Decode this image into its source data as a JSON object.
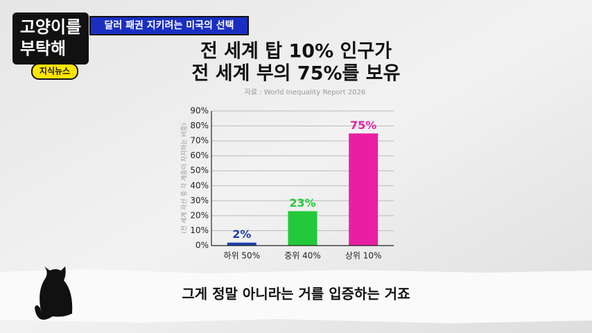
{
  "header": {
    "logo": [
      "고양이를",
      "부탁해"
    ],
    "badge": "지식뉴스",
    "banner": "달러 패권 지키려는 미국의 선택"
  },
  "chart_data": {
    "type": "bar",
    "title_lines": [
      "전 세계 탑 10% 인구가",
      "전 세계 부의 75%를 보유"
    ],
    "source": "자료 : World Inequality Report 2026",
    "y_label": "(전 세계 자산 중 각 계층이 차지하는 비중)",
    "categories": [
      "하위 50%",
      "중위 40%",
      "상위 10%"
    ],
    "series": [
      {
        "values": [
          2,
          23,
          75
        ],
        "value_labels": [
          "2%",
          "23%",
          "75%"
        ],
        "colors": [
          "#1f3fae",
          "#22c93a",
          "#e91fa3"
        ]
      }
    ],
    "ylim": [
      0,
      90
    ],
    "yticks": [
      {
        "value": 0,
        "label": "0%"
      },
      {
        "value": 10,
        "label": "10%"
      },
      {
        "value": 20,
        "label": "20%"
      },
      {
        "value": 30,
        "label": "30%"
      },
      {
        "value": 40,
        "label": "40%"
      },
      {
        "value": 50,
        "label": "50%"
      },
      {
        "value": 60,
        "label": "60%"
      },
      {
        "value": 70,
        "label": "70%"
      },
      {
        "value": 80,
        "label": "80%"
      },
      {
        "value": 90,
        "label": "90%"
      }
    ],
    "grid": true
  },
  "caption": "그게 정말 아니라는 거를 입증하는 거죠"
}
